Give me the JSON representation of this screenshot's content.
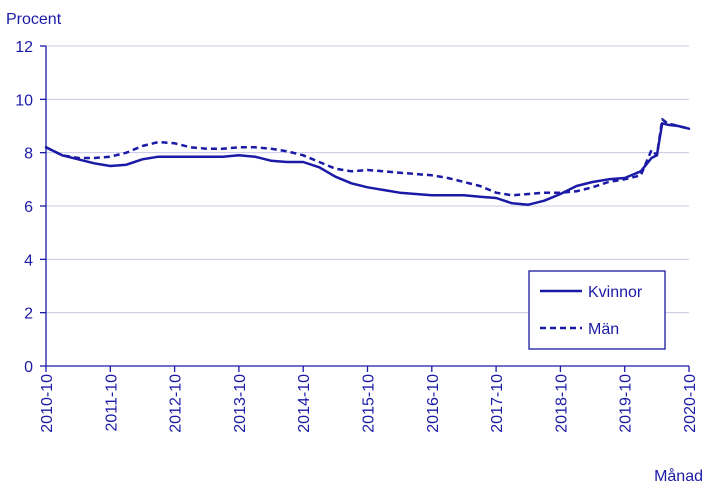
{
  "chart_data": {
    "type": "line",
    "ylabel": "Procent",
    "xlabel": "Månad",
    "ylim": [
      0,
      12
    ],
    "yticks": [
      0,
      2,
      4,
      6,
      8,
      10,
      12
    ],
    "xlim": [
      "2010-10",
      "2020-10"
    ],
    "xticks": [
      "2010-10",
      "2011-10",
      "2012-10",
      "2013-10",
      "2014-10",
      "2015-10",
      "2016-10",
      "2017-10",
      "2018-10",
      "2019-10",
      "2020-10"
    ],
    "grid": "horizontal",
    "legend_position": "bottom-right",
    "series": [
      {
        "name": "Kvinnor",
        "style": "solid",
        "color": "#1a1aa6",
        "points": [
          [
            "2010-10",
            8.2
          ],
          [
            "2011-01",
            7.9
          ],
          [
            "2011-04",
            7.75
          ],
          [
            "2011-07",
            7.6
          ],
          [
            "2011-10",
            7.5
          ],
          [
            "2012-01",
            7.55
          ],
          [
            "2012-04",
            7.75
          ],
          [
            "2012-07",
            7.85
          ],
          [
            "2012-10",
            7.85
          ],
          [
            "2013-01",
            7.85
          ],
          [
            "2013-04",
            7.85
          ],
          [
            "2013-07",
            7.85
          ],
          [
            "2013-10",
            7.9
          ],
          [
            "2014-01",
            7.85
          ],
          [
            "2014-04",
            7.7
          ],
          [
            "2014-07",
            7.65
          ],
          [
            "2014-10",
            7.65
          ],
          [
            "2015-01",
            7.45
          ],
          [
            "2015-04",
            7.1
          ],
          [
            "2015-07",
            6.85
          ],
          [
            "2015-10",
            6.7
          ],
          [
            "2016-01",
            6.6
          ],
          [
            "2016-04",
            6.5
          ],
          [
            "2016-07",
            6.45
          ],
          [
            "2016-10",
            6.4
          ],
          [
            "2017-01",
            6.4
          ],
          [
            "2017-04",
            6.4
          ],
          [
            "2017-07",
            6.35
          ],
          [
            "2017-10",
            6.3
          ],
          [
            "2018-01",
            6.1
          ],
          [
            "2018-04",
            6.05
          ],
          [
            "2018-07",
            6.2
          ],
          [
            "2018-10",
            6.45
          ],
          [
            "2019-01",
            6.75
          ],
          [
            "2019-04",
            6.9
          ],
          [
            "2019-07",
            7.0
          ],
          [
            "2019-10",
            7.05
          ],
          [
            "2020-01",
            7.3
          ],
          [
            "2020-03",
            7.8
          ],
          [
            "2020-04",
            7.9
          ],
          [
            "2020-05",
            9.1
          ],
          [
            "2020-06",
            9.05
          ],
          [
            "2020-08",
            9.0
          ],
          [
            "2020-10",
            8.9
          ]
        ]
      },
      {
        "name": "Män",
        "style": "dashed",
        "color": "#1a1aa6",
        "points": [
          [
            "2010-10",
            8.2
          ],
          [
            "2011-01",
            7.9
          ],
          [
            "2011-04",
            7.8
          ],
          [
            "2011-07",
            7.8
          ],
          [
            "2011-10",
            7.85
          ],
          [
            "2012-01",
            8.0
          ],
          [
            "2012-04",
            8.25
          ],
          [
            "2012-07",
            8.4
          ],
          [
            "2012-10",
            8.35
          ],
          [
            "2013-01",
            8.2
          ],
          [
            "2013-04",
            8.15
          ],
          [
            "2013-07",
            8.15
          ],
          [
            "2013-10",
            8.2
          ],
          [
            "2014-01",
            8.2
          ],
          [
            "2014-04",
            8.15
          ],
          [
            "2014-07",
            8.05
          ],
          [
            "2014-10",
            7.9
          ],
          [
            "2015-01",
            7.65
          ],
          [
            "2015-04",
            7.4
          ],
          [
            "2015-07",
            7.3
          ],
          [
            "2015-10",
            7.35
          ],
          [
            "2016-01",
            7.3
          ],
          [
            "2016-04",
            7.25
          ],
          [
            "2016-07",
            7.2
          ],
          [
            "2016-10",
            7.15
          ],
          [
            "2017-01",
            7.05
          ],
          [
            "2017-04",
            6.9
          ],
          [
            "2017-07",
            6.75
          ],
          [
            "2017-10",
            6.5
          ],
          [
            "2018-01",
            6.4
          ],
          [
            "2018-04",
            6.45
          ],
          [
            "2018-07",
            6.5
          ],
          [
            "2018-10",
            6.5
          ],
          [
            "2019-01",
            6.55
          ],
          [
            "2019-04",
            6.7
          ],
          [
            "2019-07",
            6.9
          ],
          [
            "2019-10",
            7.0
          ],
          [
            "2020-01",
            7.15
          ],
          [
            "2020-03",
            8.1
          ],
          [
            "2020-04",
            7.9
          ],
          [
            "2020-05",
            9.25
          ],
          [
            "2020-06",
            9.1
          ],
          [
            "2020-08",
            9.0
          ],
          [
            "2020-10",
            8.9
          ]
        ]
      }
    ]
  }
}
